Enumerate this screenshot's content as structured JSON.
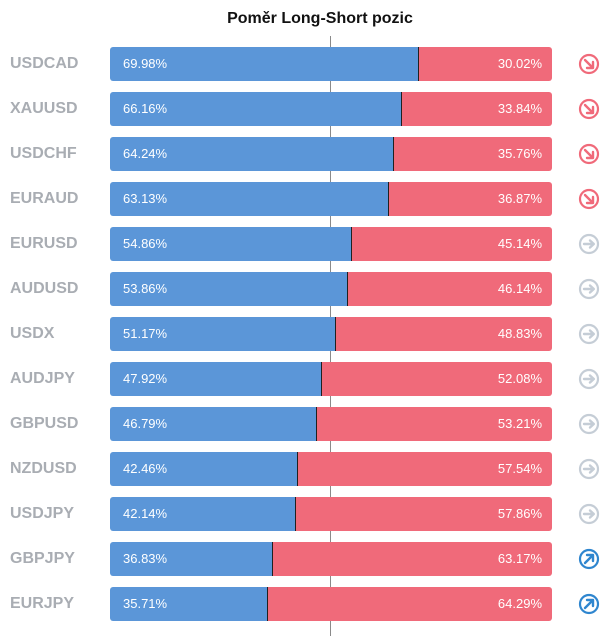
{
  "title": "Poměr Long-Short pozic",
  "colors": {
    "long": "#5b96d8",
    "short": "#f06a7a",
    "trend_down": "#f06a7a",
    "trend_neutral": "#c5cdd6",
    "trend_up": "#2f86cf"
  },
  "chart_data": {
    "type": "bar",
    "orientation": "horizontal",
    "stacked": true,
    "title": "Poměr Long-Short pozic",
    "xlim": [
      0,
      100
    ],
    "categories": [
      "USDCAD",
      "XAUUSD",
      "USDCHF",
      "EURAUD",
      "EURUSD",
      "AUDUSD",
      "USDX",
      "AUDJPY",
      "GBPUSD",
      "NZDUSD",
      "USDJPY",
      "GBPJPY",
      "EURJPY"
    ],
    "series": [
      {
        "values": [
          69.98,
          66.16,
          64.24,
          63.13,
          54.86,
          53.86,
          51.17,
          47.92,
          46.79,
          42.46,
          42.14,
          36.83,
          35.71
        ]
      },
      {
        "values": [
          30.02,
          33.84,
          35.76,
          36.87,
          45.14,
          46.14,
          48.83,
          52.08,
          53.21,
          57.54,
          57.86,
          63.17,
          64.29
        ]
      }
    ],
    "rows": [
      {
        "symbol": "USDCAD",
        "long_label": "69.98%",
        "short_label": "30.02%",
        "trend": "down"
      },
      {
        "symbol": "XAUUSD",
        "long_label": "66.16%",
        "short_label": "33.84%",
        "trend": "down"
      },
      {
        "symbol": "USDCHF",
        "long_label": "64.24%",
        "short_label": "35.76%",
        "trend": "down"
      },
      {
        "symbol": "EURAUD",
        "long_label": "63.13%",
        "short_label": "36.87%",
        "trend": "down"
      },
      {
        "symbol": "EURUSD",
        "long_label": "54.86%",
        "short_label": "45.14%",
        "trend": "neutral"
      },
      {
        "symbol": "AUDUSD",
        "long_label": "53.86%",
        "short_label": "46.14%",
        "trend": "neutral"
      },
      {
        "symbol": "USDX",
        "long_label": "51.17%",
        "short_label": "48.83%",
        "trend": "neutral"
      },
      {
        "symbol": "AUDJPY",
        "long_label": "47.92%",
        "short_label": "52.08%",
        "trend": "neutral"
      },
      {
        "symbol": "GBPUSD",
        "long_label": "46.79%",
        "short_label": "53.21%",
        "trend": "neutral"
      },
      {
        "symbol": "NZDUSD",
        "long_label": "42.46%",
        "short_label": "57.54%",
        "trend": "neutral"
      },
      {
        "symbol": "USDJPY",
        "long_label": "42.14%",
        "short_label": "57.86%",
        "trend": "neutral"
      },
      {
        "symbol": "GBPJPY",
        "long_label": "36.83%",
        "short_label": "63.17%",
        "trend": "up"
      },
      {
        "symbol": "EURJPY",
        "long_label": "35.71%",
        "short_label": "64.29%",
        "trend": "up"
      }
    ]
  }
}
